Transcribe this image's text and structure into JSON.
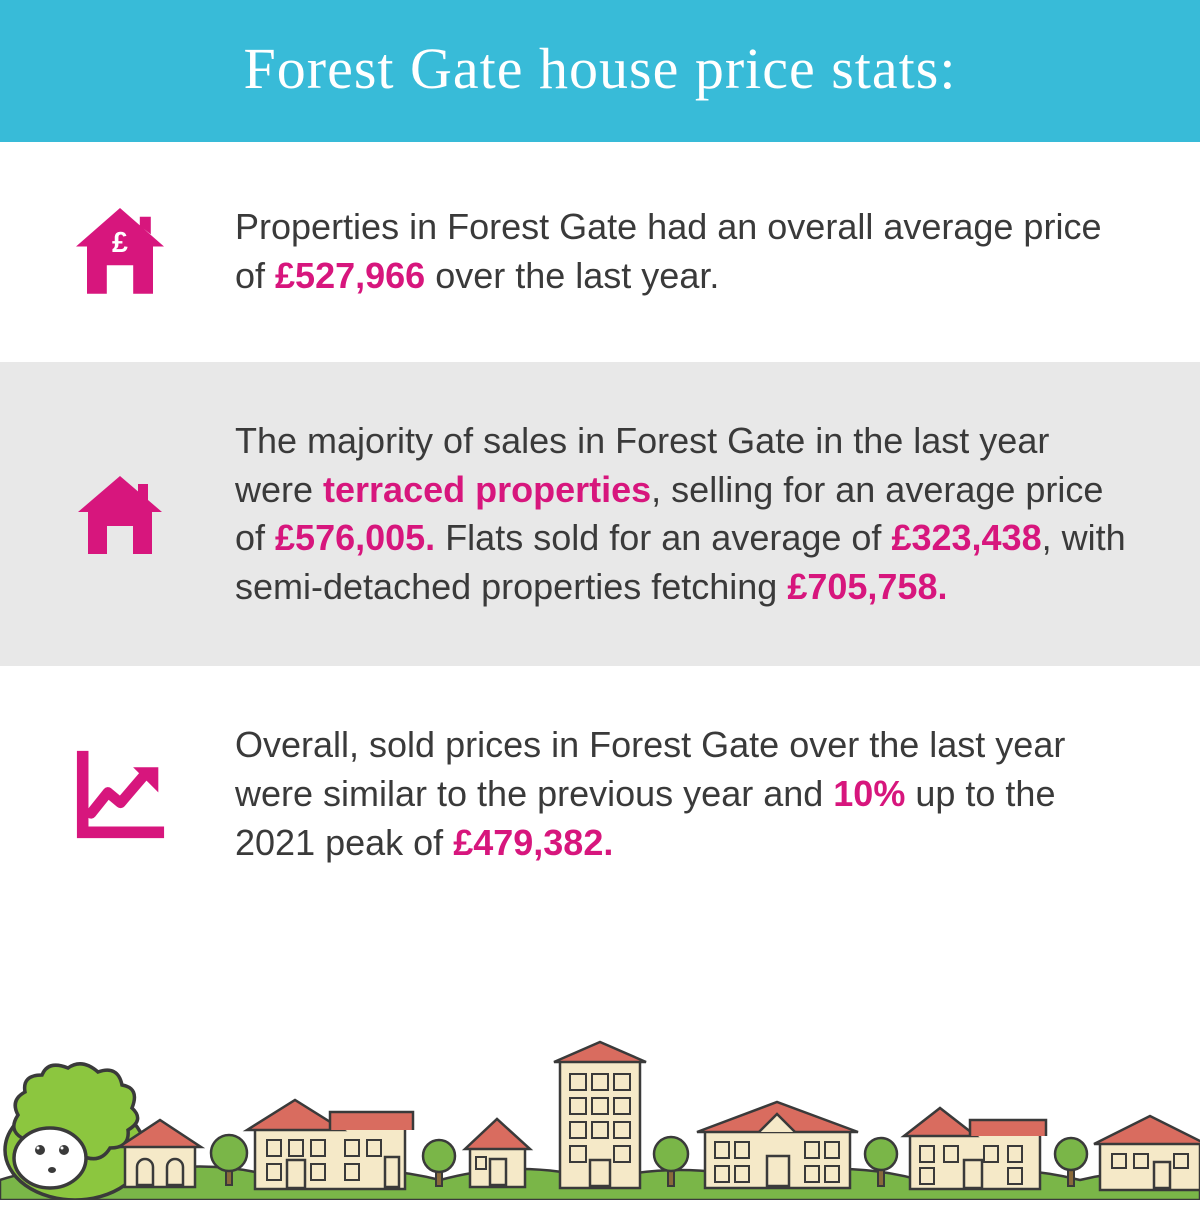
{
  "header": {
    "title": "Forest Gate house price stats:"
  },
  "colors": {
    "header_bg": "#38bbd8",
    "accent": "#d7167d",
    "body_text": "#3a3a3a",
    "gray_bg": "#e8e8e8",
    "sheep_green": "#8cc63f",
    "house_wall": "#f5e9c8",
    "house_roof": "#d96c5f",
    "bush_green": "#7ab648"
  },
  "sections": [
    {
      "icon": "house-pound",
      "parts": [
        {
          "t": "Properties in Forest Gate had an overall average price of ",
          "hl": false
        },
        {
          "t": "£527,966",
          "hl": true
        },
        {
          "t": " over the last year.",
          "hl": false
        }
      ]
    },
    {
      "icon": "house",
      "parts": [
        {
          "t": "The majority of sales in Forest Gate in the last year were ",
          "hl": false
        },
        {
          "t": "terraced properties",
          "hl": true
        },
        {
          "t": ", selling for an average price of ",
          "hl": false
        },
        {
          "t": "£576,005.",
          "hl": true
        },
        {
          "t": " Flats sold for an average of ",
          "hl": false
        },
        {
          "t": "£323,438",
          "hl": true
        },
        {
          "t": ", with semi-detached properties fetching ",
          "hl": false
        },
        {
          "t": "£705,758.",
          "hl": true
        }
      ]
    },
    {
      "icon": "chart-up",
      "parts": [
        {
          "t": "Overall, sold prices in Forest Gate over the last year were similar to the previous year and ",
          "hl": false
        },
        {
          "t": "10%",
          "hl": true
        },
        {
          "t": " up to the 2021 peak of ",
          "hl": false
        },
        {
          "t": "£479,382.",
          "hl": true
        }
      ]
    }
  ]
}
